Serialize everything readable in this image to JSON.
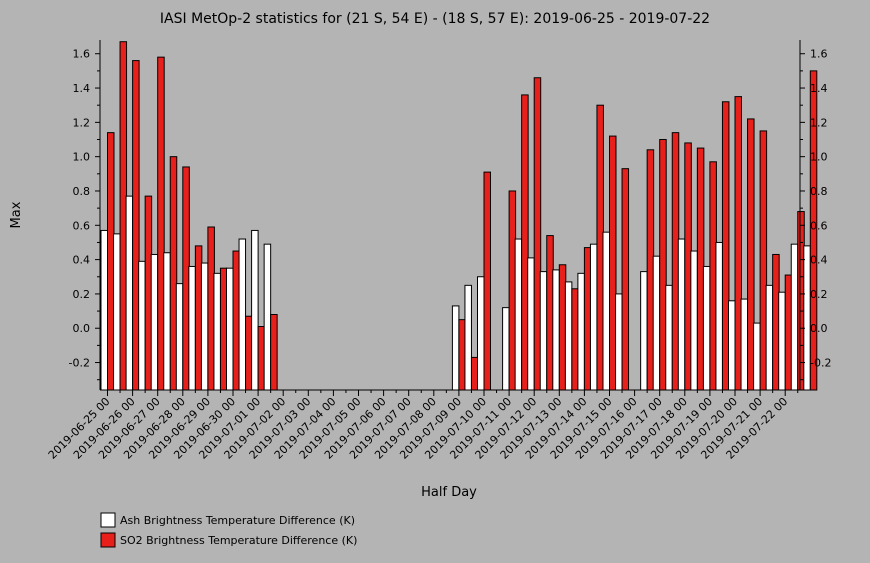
{
  "chart_data": {
    "type": "bar",
    "title": "IASI MetOp-2 statistics for (21 S, 54 E) - (18 S, 57 E): 2019-06-25 - 2019-07-22",
    "xlabel": "Half Day",
    "ylabel": "Max",
    "ylim": [
      -0.36,
      1.68
    ],
    "yticks": [
      "-0.2",
      "0.0",
      "0.2",
      "0.4",
      "0.6",
      "0.8",
      "1.0",
      "1.2",
      "1.4",
      "1.6"
    ],
    "xticks": [
      "2019-06-25 00",
      "2019-06-26 00",
      "2019-06-27 00",
      "2019-06-28 00",
      "2019-06-29 00",
      "2019-06-30 00",
      "2019-07-01 00",
      "2019-07-02 00",
      "2019-07-03 00",
      "2019-07-04 00",
      "2019-07-05 00",
      "2019-07-06 00",
      "2019-07-07 00",
      "2019-07-08 00",
      "2019-07-09 00",
      "2019-07-10 00",
      "2019-07-11 00",
      "2019-07-12 00",
      "2019-07-13 00",
      "2019-07-14 00",
      "2019-07-15 00",
      "2019-07-16 00",
      "2019-07-17 00",
      "2019-07-18 00",
      "2019-07-19 00",
      "2019-07-20 00",
      "2019-07-21 00",
      "2019-07-22 00"
    ],
    "legend_position": "bottom-left",
    "series": [
      {
        "name": "Ash Brightness Temperature Difference (K)",
        "color": "#ffffff",
        "values": [
          0.57,
          0.55,
          0.77,
          0.39,
          0.43,
          0.44,
          0.26,
          0.36,
          0.38,
          0.32,
          0.35,
          0.52,
          0.57,
          0.49,
          null,
          null,
          null,
          null,
          null,
          null,
          null,
          null,
          null,
          null,
          null,
          null,
          null,
          null,
          0.13,
          0.25,
          0.3,
          null,
          0.12,
          0.52,
          0.41,
          0.33,
          0.34,
          0.27,
          0.32,
          0.49,
          0.56,
          0.2,
          null,
          0.33,
          0.42,
          0.25,
          0.52,
          0.45,
          0.36,
          0.5,
          0.16,
          0.17,
          0.03,
          0.25,
          0.21,
          0.49,
          0.48
        ]
      },
      {
        "name": "SO2 Brightness Temperature Difference (K)",
        "color": "#e8201c",
        "values": [
          1.14,
          1.67,
          1.56,
          0.77,
          1.58,
          1.0,
          0.94,
          0.48,
          0.59,
          0.35,
          0.45,
          0.07,
          0.01,
          0.08,
          null,
          null,
          null,
          null,
          null,
          null,
          null,
          null,
          null,
          null,
          null,
          null,
          null,
          null,
          0.05,
          -0.17,
          0.91,
          null,
          0.8,
          1.36,
          1.46,
          0.54,
          0.37,
          0.23,
          0.47,
          1.3,
          1.12,
          0.93,
          null,
          1.04,
          1.1,
          1.14,
          1.08,
          1.05,
          0.97,
          1.32,
          1.35,
          1.22,
          1.15,
          0.43,
          0.31,
          0.68,
          1.5
        ]
      }
    ]
  }
}
